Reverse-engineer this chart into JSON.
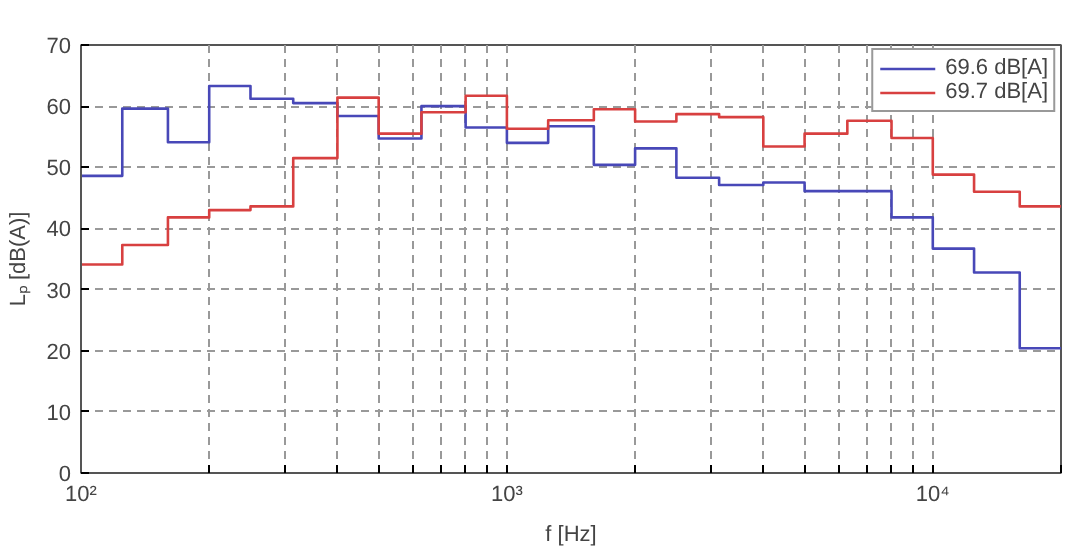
{
  "chart_data": {
    "type": "step",
    "xlabel": "f [Hz]",
    "ylabel": "Lₚ [dB(A)]",
    "x": [
      100,
      125,
      160,
      200,
      250,
      315,
      400,
      500,
      630,
      800,
      1000,
      1250,
      1600,
      2000,
      2500,
      3150,
      4000,
      5000,
      6300,
      8000,
      10000,
      12500,
      16000,
      20000
    ],
    "series": [
      {
        "name": "69.6 dB[A]",
        "color": "#4848b8",
        "values": [
          48.6,
          59.6,
          54.1,
          63.3,
          61.2,
          60.5,
          58.4,
          54.7,
          60.0,
          56.5,
          54.0,
          56.7,
          50.4,
          53.1,
          48.3,
          47.1,
          47.5,
          46.1,
          46.1,
          41.8,
          36.7,
          32.8,
          20.4,
          20.4
        ]
      },
      {
        "name": "69.7 dB[A]",
        "color": "#d84040",
        "values": [
          34.1,
          37.3,
          41.8,
          43.0,
          43.6,
          51.5,
          61.4,
          55.5,
          59.0,
          61.7,
          56.3,
          57.7,
          59.5,
          57.5,
          58.7,
          58.2,
          53.4,
          55.5,
          57.6,
          54.8,
          48.8,
          46.0,
          43.6,
          43.6
        ]
      }
    ],
    "log": "x",
    "xlim": [
      100,
      20000
    ],
    "xticks": [
      {
        "value": 100,
        "label": "10²"
      },
      {
        "value": 200,
        "label": null
      },
      {
        "value": 300,
        "label": null
      },
      {
        "value": 400,
        "label": null
      },
      {
        "value": 500,
        "label": null
      },
      {
        "value": 600,
        "label": null
      },
      {
        "value": 700,
        "label": null
      },
      {
        "value": 800,
        "label": null
      },
      {
        "value": 900,
        "label": null
      },
      {
        "value": 1000,
        "label": "10³"
      },
      {
        "value": 2000,
        "label": null
      },
      {
        "value": 3000,
        "label": null
      },
      {
        "value": 4000,
        "label": null
      },
      {
        "value": 5000,
        "label": null
      },
      {
        "value": 6000,
        "label": null
      },
      {
        "value": 7000,
        "label": null
      },
      {
        "value": 8000,
        "label": null
      },
      {
        "value": 9000,
        "label": null
      },
      {
        "value": 10000,
        "label": "10⁴"
      },
      {
        "value": 20000,
        "label": null
      }
    ],
    "ylim": [
      0,
      70
    ],
    "yticks": [
      0,
      10,
      20,
      30,
      40,
      50,
      60,
      70
    ],
    "grid": true,
    "legend": "top right",
    "line_style": "solid"
  }
}
